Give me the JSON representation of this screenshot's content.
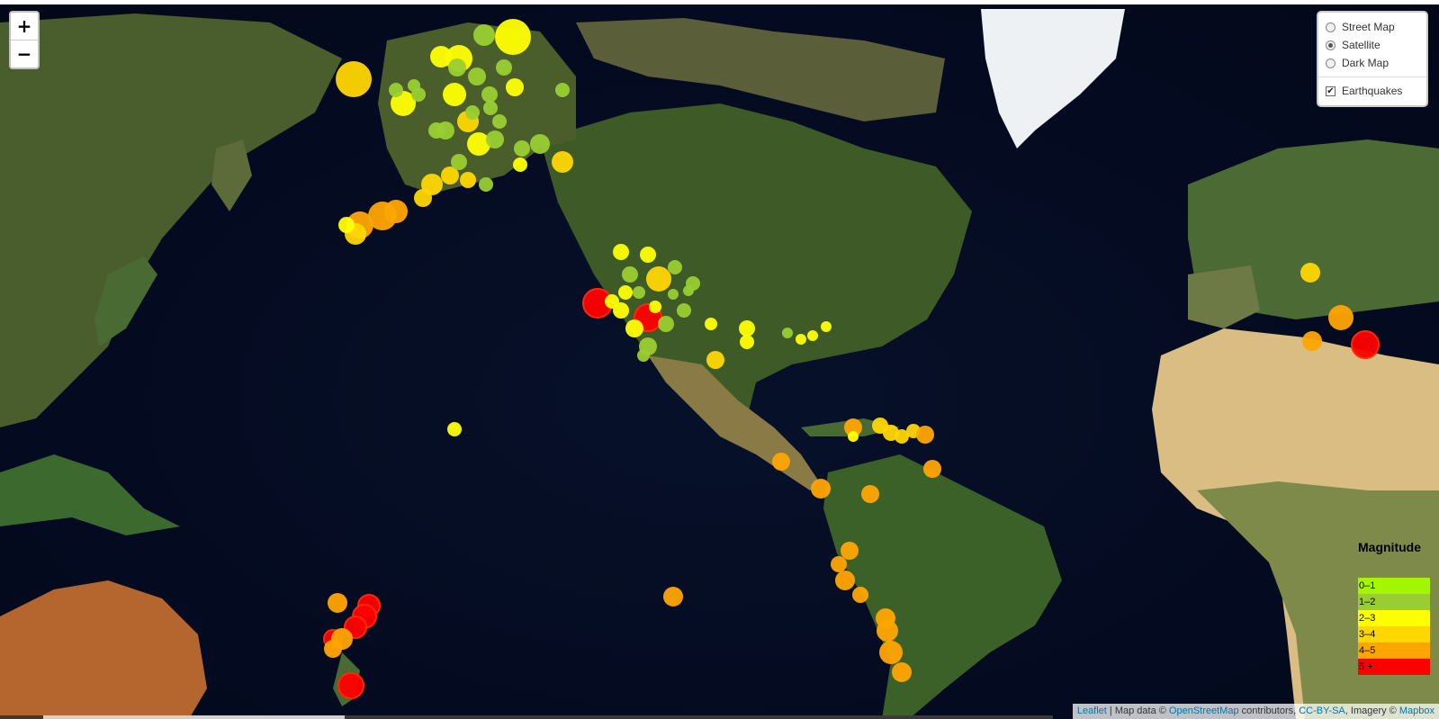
{
  "zoom": {
    "in_label": "+",
    "out_label": "−"
  },
  "layers": {
    "base": [
      {
        "label": "Street Map",
        "selected": false
      },
      {
        "label": "Satellite",
        "selected": true
      },
      {
        "label": "Dark Map",
        "selected": false
      }
    ],
    "overlays": [
      {
        "label": "Earthquakes",
        "checked": true,
        "mark": "✔"
      }
    ]
  },
  "legend": {
    "title": "Magnitude",
    "items": [
      {
        "label": "0–1",
        "color": "#a3f600"
      },
      {
        "label": "1–2",
        "color": "#9acd32"
      },
      {
        "label": "2–3",
        "color": "#ffff00"
      },
      {
        "label": "3–4",
        "color": "#ffd700"
      },
      {
        "label": "4–5",
        "color": "#ffa500"
      },
      {
        "label": "5 +",
        "color": "#ff0000"
      }
    ]
  },
  "attribution": {
    "leaflet": "Leaflet",
    "sep": " | Map data © ",
    "osm": "OpenStreetMap",
    "contributors": " contributors, ",
    "license": "CC-BY-SA",
    "imagery": ", Imagery © ",
    "mapbox": "Mapbox"
  },
  "colors": {
    "ocean": "#050d24",
    "land_green": "#3f5a27",
    "desert": "#c9a866",
    "ice": "#f1f3f6"
  }
}
